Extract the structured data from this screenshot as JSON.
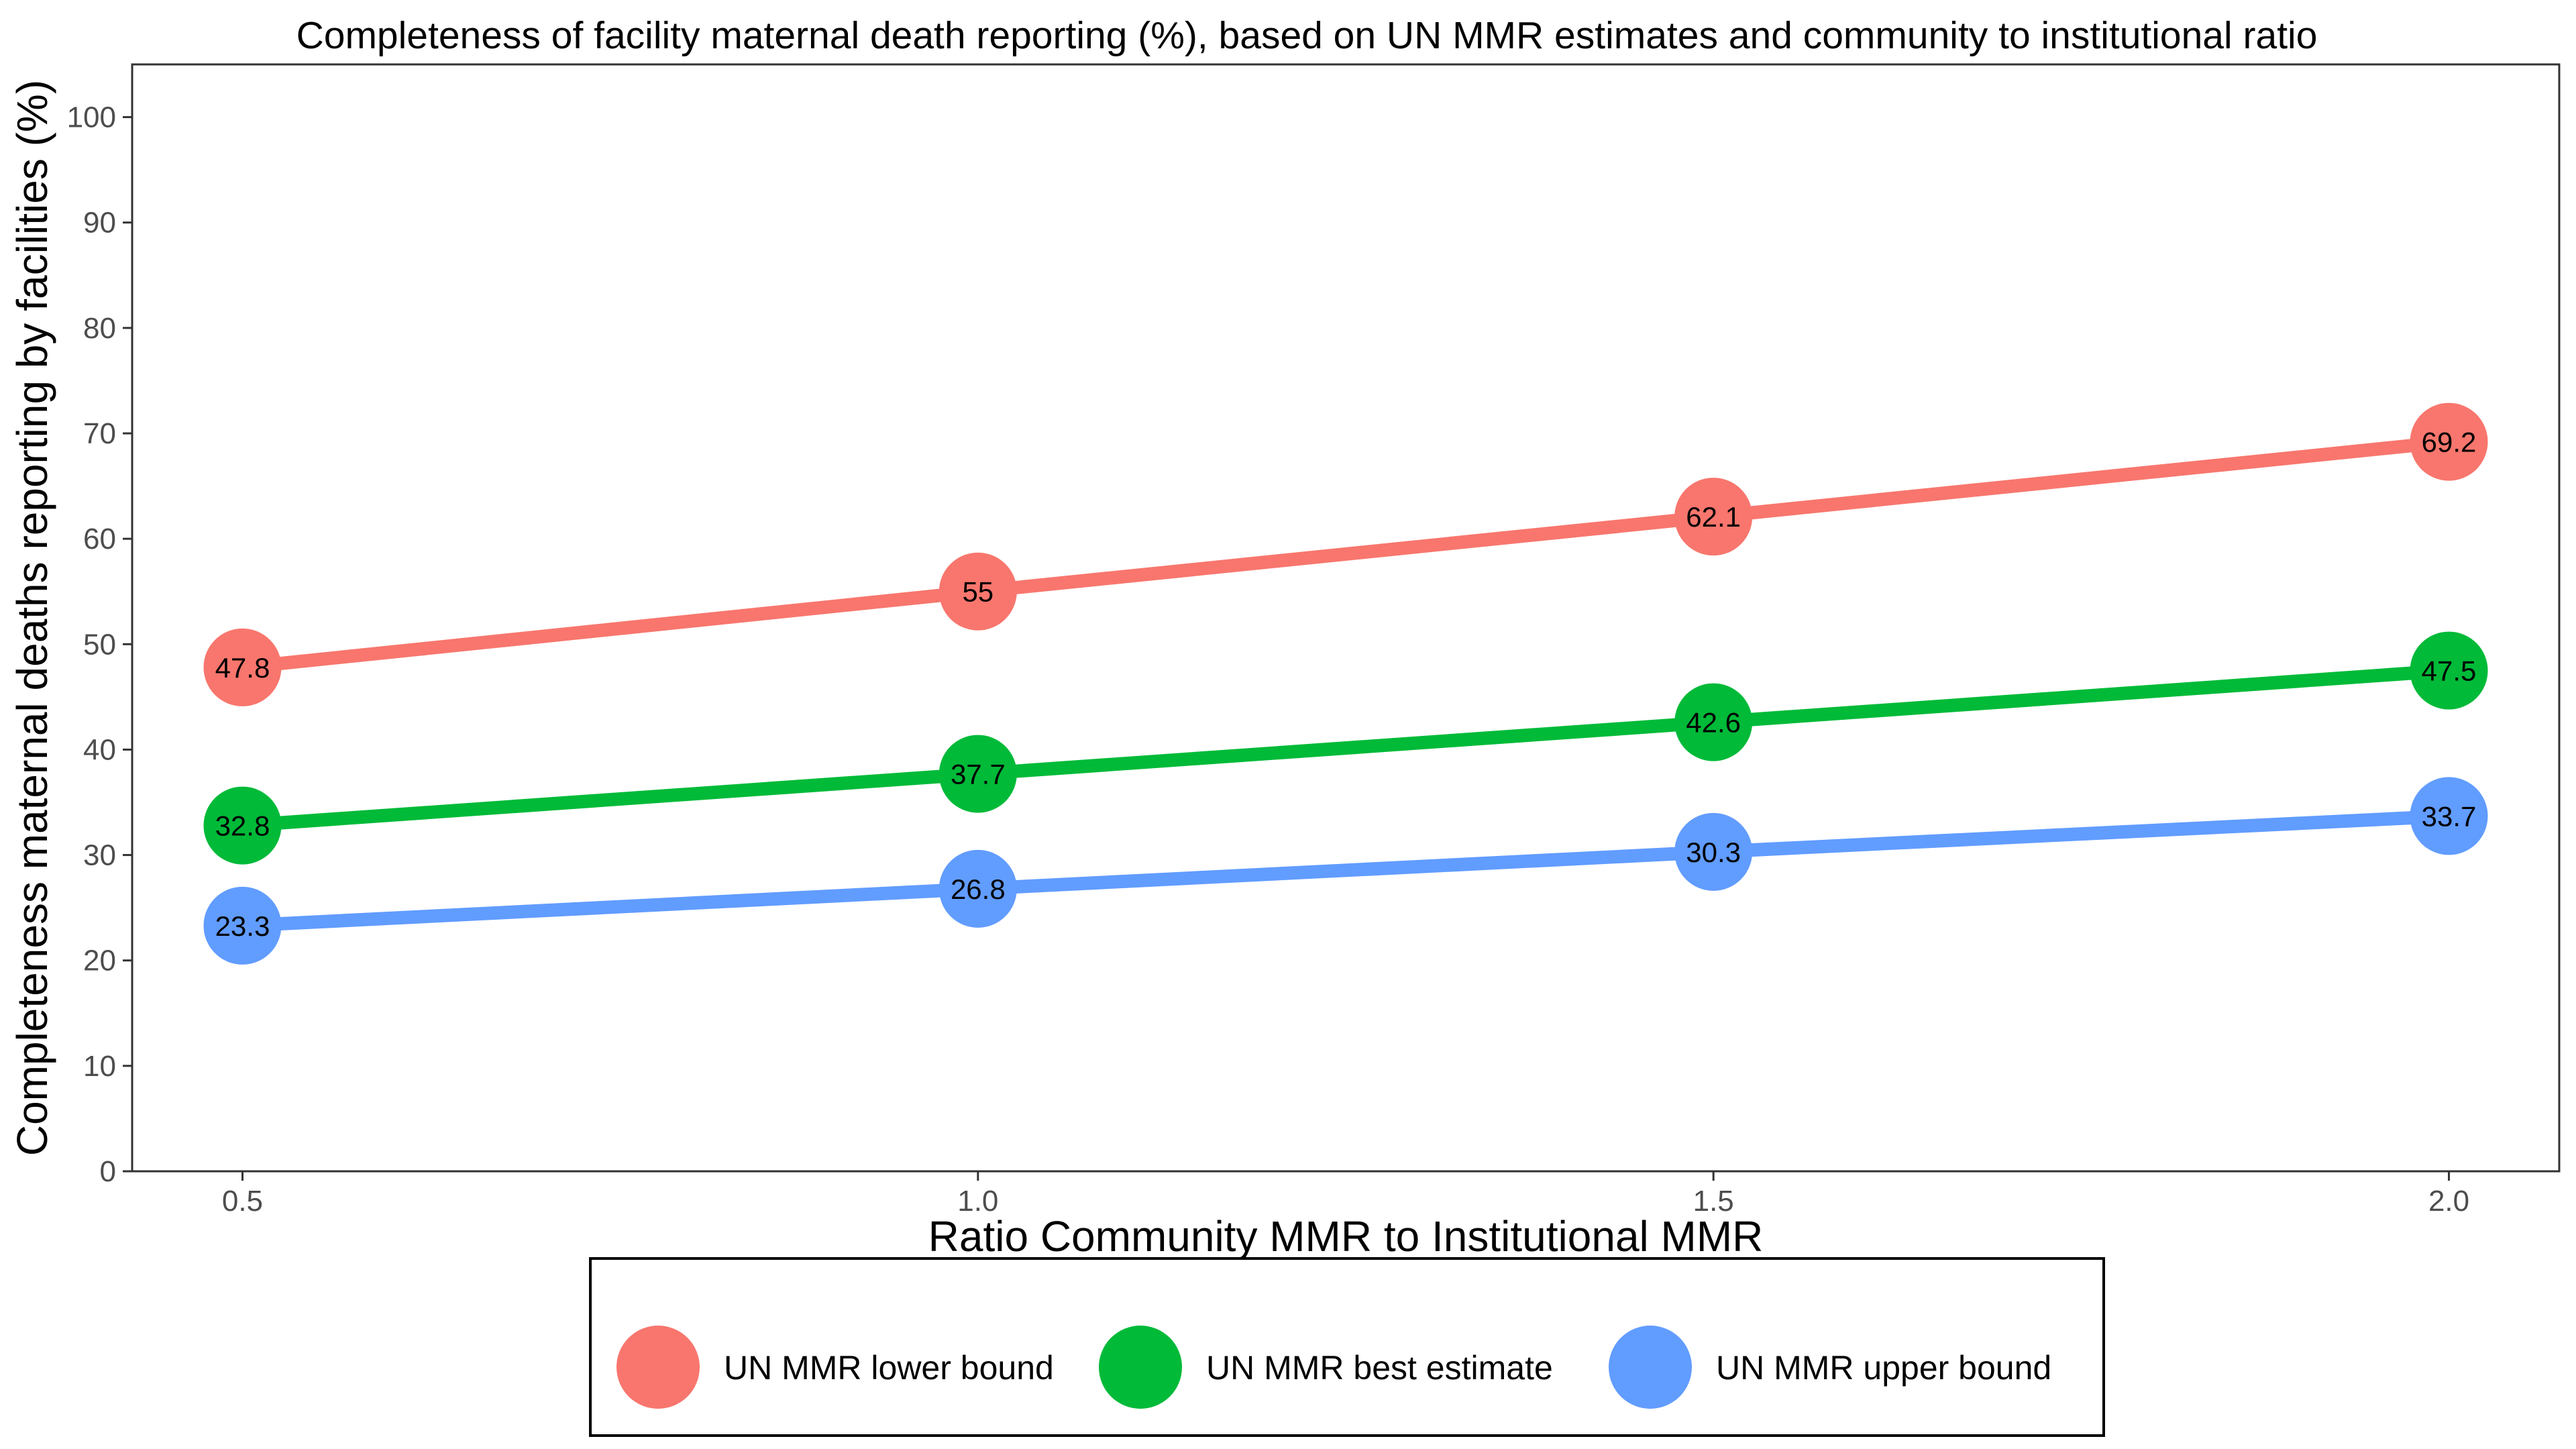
{
  "chart_data": {
    "type": "line",
    "title": "Completeness of facility maternal death reporting (%), based on UN MMR estimates and community to institutional ratio",
    "xlabel": "Ratio Community MMR to Institutional MMR",
    "ylabel": "Completeness maternal deaths reporting by facilities (%)",
    "x": [
      0.5,
      1.0,
      1.5,
      2.0
    ],
    "x_tick_labels": [
      "0.5",
      "1.0",
      "1.5",
      "2.0"
    ],
    "xlim": [
      0.425,
      2.075
    ],
    "ylim": [
      0,
      105
    ],
    "y_ticks": [
      0,
      10,
      20,
      30,
      40,
      50,
      60,
      70,
      80,
      90,
      100
    ],
    "y_tick_labels": [
      "0",
      "10",
      "20",
      "30",
      "40",
      "50",
      "60",
      "70",
      "80",
      "90",
      "100"
    ],
    "grid": false,
    "legend_position": "bottom",
    "series": [
      {
        "name": "UN MMR lower bound",
        "color": "#F8766D",
        "values": [
          47.8,
          55,
          62.1,
          69.2
        ],
        "labels": [
          "47.8",
          "55",
          "62.1",
          "69.2"
        ]
      },
      {
        "name": "UN MMR best estimate",
        "color": "#00BA38",
        "values": [
          32.8,
          37.7,
          42.6,
          47.5
        ],
        "labels": [
          "32.8",
          "37.7",
          "42.6",
          "47.5"
        ]
      },
      {
        "name": "UN MMR upper bound",
        "color": "#619CFF",
        "values": [
          23.3,
          26.8,
          30.3,
          33.7
        ],
        "labels": [
          "23.3",
          "26.8",
          "30.3",
          "33.7"
        ]
      }
    ]
  }
}
